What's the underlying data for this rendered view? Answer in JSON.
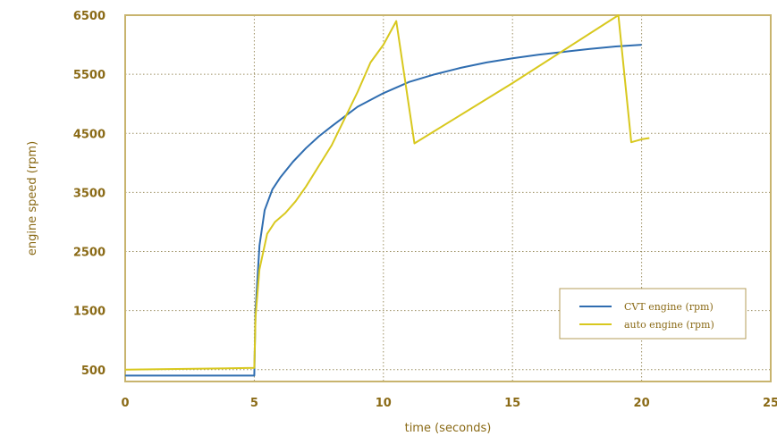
{
  "chart_data": {
    "type": "line",
    "title": "",
    "xlabel": "time (seconds)",
    "ylabel": "engine speed (rpm)",
    "xlim": [
      0,
      25
    ],
    "ylim": [
      300,
      6500
    ],
    "x_ticks": [
      0,
      5,
      10,
      15,
      20,
      25
    ],
    "y_ticks": [
      500,
      1500,
      2500,
      3500,
      4500,
      5500,
      6500
    ],
    "grid": true,
    "legend_position": "bottom-right",
    "colors": {
      "frame": "#c8b46e",
      "grid": "#9c8f62",
      "text": "#8a6a16"
    },
    "series": [
      {
        "name": "CVT engine (rpm)",
        "color": "#2f6db0",
        "x": [
          0,
          5,
          5.05,
          5.2,
          5.4,
          5.7,
          6,
          6.5,
          7,
          7.5,
          8,
          9,
          10,
          11,
          12,
          13,
          14,
          15,
          16,
          17,
          18,
          19,
          20
        ],
        "y": [
          400,
          400,
          1500,
          2600,
          3200,
          3550,
          3750,
          4020,
          4250,
          4450,
          4620,
          4950,
          5180,
          5370,
          5500,
          5610,
          5700,
          5770,
          5830,
          5880,
          5930,
          5970,
          6000
        ]
      },
      {
        "name": "auto engine (rpm)",
        "color": "#d8c81e",
        "x": [
          0,
          5,
          5.05,
          5.2,
          5.5,
          5.8,
          6.2,
          6.6,
          7,
          8,
          9,
          9.5,
          10,
          10.5,
          11.2,
          15,
          19.1,
          19.6,
          20,
          20.3
        ],
        "y": [
          500,
          530,
          1400,
          2200,
          2800,
          3000,
          3150,
          3350,
          3600,
          4300,
          5200,
          5700,
          6000,
          6400,
          4330,
          5350,
          6500,
          4350,
          4400,
          4420
        ]
      }
    ]
  }
}
